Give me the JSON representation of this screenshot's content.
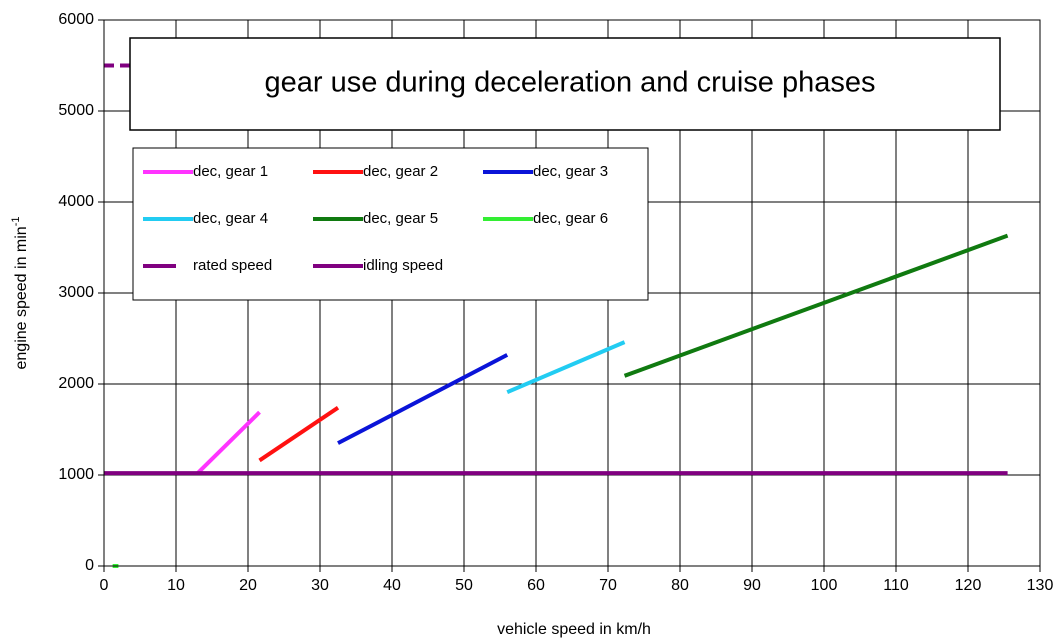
{
  "chart_data": {
    "type": "line",
    "title": "gear use during deceleration and cruise phases",
    "xlabel": "vehicle speed in km/h",
    "ylabel": {
      "text": "engine speed in min",
      "superscript": "-1"
    },
    "xlim": [
      0,
      130
    ],
    "ylim": [
      0,
      6000
    ],
    "xticks": [
      0,
      10,
      20,
      30,
      40,
      50,
      60,
      70,
      80,
      90,
      100,
      110,
      120,
      130
    ],
    "yticks": [
      0,
      1000,
      2000,
      3000,
      4000,
      5000,
      6000
    ],
    "grid": true,
    "legend": "upper left",
    "series": [
      {
        "name": "dec, gear 1",
        "color": "#ff33ff",
        "x": [
          13,
          21.6
        ],
        "values": [
          1020,
          1690
        ]
      },
      {
        "name": "dec, gear 2",
        "color": "#ff1111",
        "x": [
          21.6,
          32.5
        ],
        "values": [
          1160,
          1740
        ]
      },
      {
        "name": "dec, gear 3",
        "color": "#0a14d8",
        "x": [
          32.5,
          56
        ],
        "values": [
          1350,
          2320
        ]
      },
      {
        "name": "dec, gear 4",
        "color": "#22ccf2",
        "x": [
          56,
          72.3
        ],
        "values": [
          1910,
          2460
        ]
      },
      {
        "name": "dec, gear 5",
        "color": "#107a10",
        "x": [
          72.3,
          125.5
        ],
        "values": [
          2090,
          3630
        ]
      },
      {
        "name": "dec, gear 6",
        "color": "#33ee33",
        "x": [
          1.2,
          2
        ],
        "values": [
          0,
          0
        ]
      },
      {
        "name": "rated speed",
        "color": "#800080",
        "dashed": true,
        "x": [
          0,
          4
        ],
        "values": [
          5500,
          5500
        ]
      },
      {
        "name": "idling speed",
        "color": "#800080",
        "x": [
          0,
          125.5
        ],
        "values": [
          1020,
          1020
        ]
      }
    ]
  }
}
